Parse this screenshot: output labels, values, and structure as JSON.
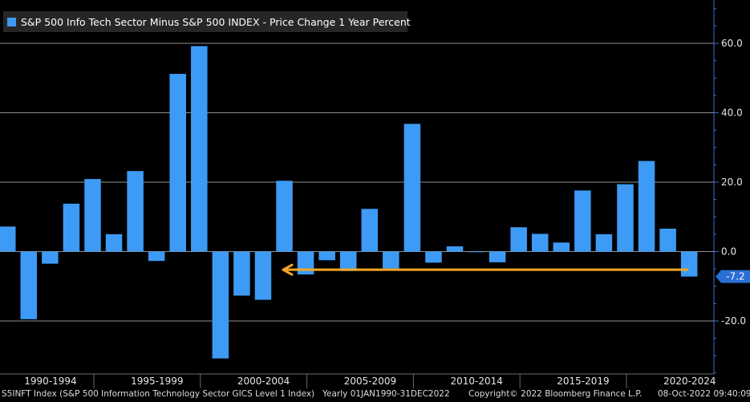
{
  "chart_data": {
    "type": "bar",
    "title": "S&P 500 Info Tech Sector Minus S&P 500 INDEX - Price Change 1 Year Percent",
    "series": [
      {
        "name": "S&P 500 Info Tech Sector Minus S&P 500 INDEX - Price Change 1 Year Percent",
        "x": [
          1990,
          1991,
          1992,
          1993,
          1994,
          1995,
          1996,
          1997,
          1998,
          1999,
          2000,
          2001,
          2002,
          2003,
          2004,
          2005,
          2006,
          2007,
          2008,
          2009,
          2010,
          2011,
          2012,
          2013,
          2014,
          2015,
          2016,
          2017,
          2018,
          2019,
          2020,
          2021,
          2022
        ],
        "values": [
          7.2,
          -19.5,
          -3.5,
          13.8,
          20.9,
          5.0,
          23.2,
          -2.7,
          51.2,
          59.2,
          -30.8,
          -12.7,
          -13.9,
          20.4,
          -6.6,
          -2.5,
          -5.6,
          12.3,
          -4.9,
          36.8,
          -3.2,
          1.5,
          -0.1,
          -3.1,
          7.0,
          5.1,
          2.6,
          17.6,
          5.0,
          19.4,
          26.1,
          6.6,
          -7.2
        ]
      }
    ],
    "x_tick_labels": [
      "1990-1994",
      "1995-1999",
      "2000-2004",
      "2005-2009",
      "2010-2014",
      "2015-2019",
      "2020-2024"
    ],
    "y_tick_labels": [
      "60.0",
      "40.0",
      "20.0",
      "0.0",
      "-20.0"
    ],
    "y_ticks": [
      60,
      40,
      20,
      0,
      -20
    ],
    "ylim": [
      -35,
      71
    ],
    "last_value_label": "-7.2",
    "annotation": "arrow pointing left at level of latest value",
    "xlabel": "",
    "ylabel": "",
    "axis_position": "right"
  },
  "footer": {
    "ticker": "S5INFT Index (S&P 500 Information Technology Sector GICS Level 1 Index)",
    "period": "Yearly 01JAN1990-31DEC2022",
    "copyright": "Copyright© 2022 Bloomberg Finance L.P.",
    "timestamp": "08-Oct-2022 09:40:09"
  },
  "colors": {
    "bar": "#3d9bf5",
    "grid": "#8f8f8f",
    "axis": "#3d72c9",
    "arrow": "#f5a623",
    "text": "#e6e6e6",
    "value_label_bg": "#2a6fd6"
  }
}
